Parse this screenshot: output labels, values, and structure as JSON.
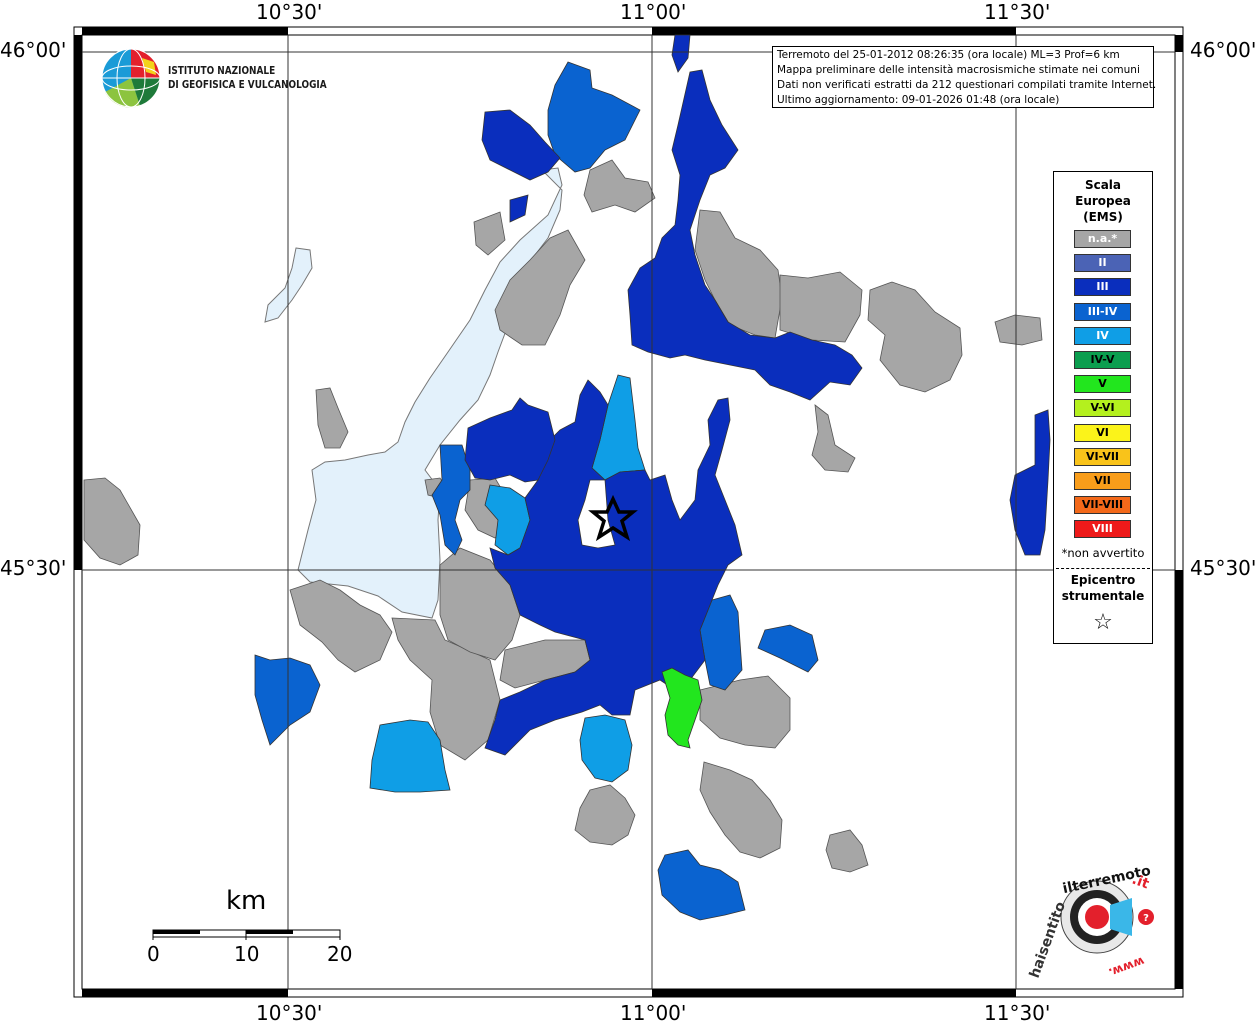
{
  "map": {
    "lon_labels": [
      "10°30'",
      "11°00'",
      "11°30'"
    ],
    "lat_labels": [
      "46°00'",
      "45°30'"
    ]
  },
  "institute": {
    "line1": "ISTITUTO NAZIONALE",
    "line2": "DI GEOFISICA E VULCANOLOGIA"
  },
  "info": {
    "line1": "Terremoto del 25-01-2012 08:26:35 (ora locale) ML=3 Prof=6 km",
    "line2": "Mappa preliminare delle intensità macrosismiche stimate nei comuni",
    "line3": "Dati non verificati estratti da 212 questionari compilati tramite Internet.",
    "line4": "Ultimo aggiornamento: 09-01-2026 01:48 (ora locale)"
  },
  "legend": {
    "title1": "Scala",
    "title2": "Europea",
    "title3": "(EMS)",
    "items": [
      {
        "label": "n.a.*",
        "color": "#a6a6a6",
        "text_color": "#ffffff"
      },
      {
        "label": "II",
        "color": "#4b63b5",
        "text_color": "#ffffff"
      },
      {
        "label": "III",
        "color": "#0a2ebd",
        "text_color": "#ffffff"
      },
      {
        "label": "III-IV",
        "color": "#0a63d0",
        "text_color": "#ffffff"
      },
      {
        "label": "IV",
        "color": "#0f9ee6",
        "text_color": "#ffffff"
      },
      {
        "label": "IV-V",
        "color": "#0b9e4f",
        "text_color": "#000000"
      },
      {
        "label": "V",
        "color": "#22e61e",
        "text_color": "#000000"
      },
      {
        "label": "V-VI",
        "color": "#b4f01e",
        "text_color": "#000000"
      },
      {
        "label": "VI",
        "color": "#fbf31a",
        "text_color": "#000000"
      },
      {
        "label": "VI-VII",
        "color": "#f9c31a",
        "text_color": "#000000"
      },
      {
        "label": "VII",
        "color": "#f99d1a",
        "text_color": "#000000"
      },
      {
        "label": "VII-VIII",
        "color": "#f3691a",
        "text_color": "#000000"
      },
      {
        "label": "VIII",
        "color": "#ee1a1a",
        "text_color": "#ffffff"
      }
    ],
    "note": "*non avvertito",
    "epicentre1": "Epicentro",
    "epicentre2": "strumentale",
    "epicentre_symbol": "☆"
  },
  "scale_bar": {
    "unit": "km",
    "labels": [
      "0",
      "10",
      "20"
    ]
  },
  "colors": {
    "na": "#a6a6a6",
    "iii": "#0a2ebd",
    "iii_iv": "#0a63d0",
    "iv": "#0f9ee6",
    "v": "#22e61e",
    "lake": "#e3f1fb"
  },
  "badge": {
    "text1": "haisentito",
    "text2": "ilterremoto",
    "text3": ".it",
    "text4": "www."
  }
}
